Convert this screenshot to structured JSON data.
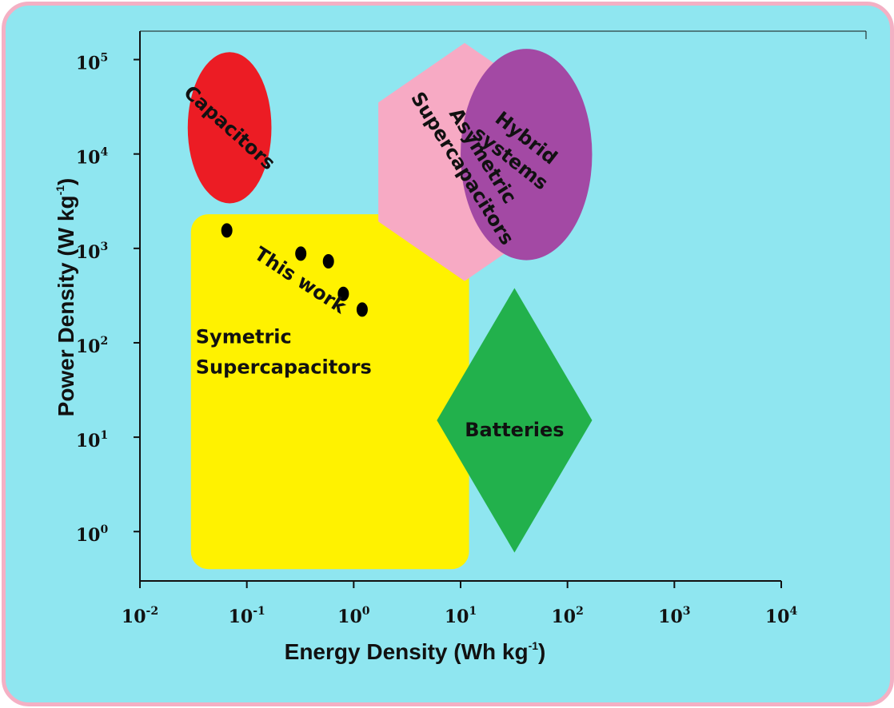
{
  "chart_data": {
    "type": "scatter",
    "xlabel": "Energy Density (Wh kg",
    "xlabel_sup": "-1",
    "xlabel_end": ")",
    "ylabel": "Power Density (W kg",
    "ylabel_sup": "-1",
    "ylabel_end": ")",
    "xscale": "log",
    "yscale": "log",
    "xlim": [
      0.01,
      10000
    ],
    "ylim": [
      0.3,
      200000
    ],
    "grid": false,
    "x_ticks": [
      {
        "base": "10",
        "exp": "-2",
        "value": 0.01
      },
      {
        "base": "10",
        "exp": "-1",
        "value": 0.1
      },
      {
        "base": "10",
        "exp": "0",
        "value": 1
      },
      {
        "base": "10",
        "exp": "1",
        "value": 10
      },
      {
        "base": "10",
        "exp": "2",
        "value": 100
      },
      {
        "base": "10",
        "exp": "3",
        "value": 1000
      },
      {
        "base": "10",
        "exp": "4",
        "value": 10000
      }
    ],
    "y_ticks": [
      {
        "base": "10",
        "exp": "0",
        "value": 1
      },
      {
        "base": "10",
        "exp": "1",
        "value": 10
      },
      {
        "base": "10",
        "exp": "2",
        "value": 100
      },
      {
        "base": "10",
        "exp": "3",
        "value": 1000
      },
      {
        "base": "10",
        "exp": "4",
        "value": 10000
      },
      {
        "base": "10",
        "exp": "5",
        "value": 100000
      }
    ],
    "regions": [
      {
        "name": "capacitors",
        "labels": [
          "Capacitors"
        ],
        "shape": "ellipse",
        "color": "#ec1c24",
        "x_range": [
          0.028,
          0.17
        ],
        "y_range": [
          3000,
          120000
        ]
      },
      {
        "name": "symmetric",
        "labels": [
          "Symetric",
          "Supercapacitors"
        ],
        "shape": "rounded-rect",
        "color": "#fff200",
        "x_range": [
          0.03,
          12
        ],
        "y_range": [
          0.4,
          2300
        ]
      },
      {
        "name": "asymmetric",
        "labels": [
          "Asymetric",
          "Supercapacitors"
        ],
        "shape": "hexagon",
        "color": "#f7aac4",
        "x_range": [
          1.7,
          70
        ],
        "y_range": [
          450,
          150000
        ]
      },
      {
        "name": "hybrid",
        "labels": [
          "Hybrid",
          "systems"
        ],
        "shape": "ellipse",
        "color": "#a349a4",
        "x_range": [
          10,
          170
        ],
        "y_range": [
          750,
          130000
        ]
      },
      {
        "name": "batteries",
        "labels": [
          "Batteries"
        ],
        "shape": "diamond",
        "color": "#22b14c",
        "x_range": [
          6,
          170
        ],
        "y_range": [
          0.6,
          380
        ]
      }
    ],
    "series": [
      {
        "name": "This work",
        "points": [
          {
            "x": 0.065,
            "y": 1550
          },
          {
            "x": 0.32,
            "y": 880
          },
          {
            "x": 0.58,
            "y": 730
          },
          {
            "x": 0.8,
            "y": 330
          },
          {
            "x": 1.2,
            "y": 225
          }
        ]
      }
    ]
  }
}
